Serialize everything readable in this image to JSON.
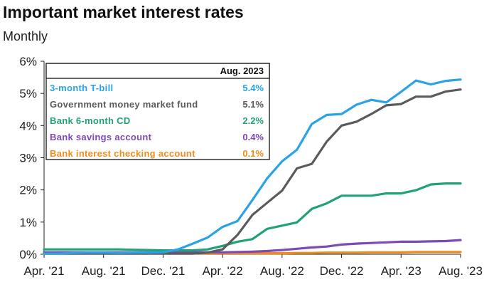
{
  "chart_data": {
    "type": "line",
    "title": "Important market interest rates",
    "subtitle": "Monthly",
    "xlabel": "",
    "ylabel": "",
    "ylim": [
      0,
      6
    ],
    "y_ticks": [
      "0%",
      "1%",
      "2%",
      "3%",
      "4%",
      "5%",
      "6%"
    ],
    "x_tick_labels": [
      "Apr. '21",
      "Aug. '21",
      "Dec. '21",
      "Apr. '22",
      "Aug. '22",
      "Dec. '22",
      "Apr. '23",
      "Aug. '23"
    ],
    "x_tick_index": [
      0,
      4,
      8,
      12,
      16,
      20,
      24,
      28
    ],
    "legend_header": "Aug. 2023",
    "months": [
      "Apr. '21",
      "May '21",
      "Jun. '21",
      "Jul. '21",
      "Aug. '21",
      "Sep. '21",
      "Oct. '21",
      "Nov. '21",
      "Dec. '21",
      "Jan. '22",
      "Feb. '22",
      "Mar. '22",
      "Apr. '22",
      "May '22",
      "Jun. '22",
      "Jul. '22",
      "Aug. '22",
      "Sep. '22",
      "Oct. '22",
      "Nov. '22",
      "Dec. '22",
      "Jan. '23",
      "Feb. '23",
      "Mar. '23",
      "Apr. '23",
      "May '23",
      "Jun. '23",
      "Jul. '23",
      "Aug. '23"
    ],
    "series": [
      {
        "name": "3-month T-bill",
        "label_value": "5.4%",
        "color": "#29a3e6",
        "values": [
          0.02,
          0.02,
          0.04,
          0.05,
          0.05,
          0.04,
          0.05,
          0.05,
          0.06,
          0.15,
          0.33,
          0.52,
          0.85,
          1.03,
          1.68,
          2.36,
          2.89,
          3.25,
          4.05,
          4.33,
          4.36,
          4.65,
          4.8,
          4.72,
          5.05,
          5.4,
          5.28,
          5.39,
          5.43
        ]
      },
      {
        "name": "Government money market fund",
        "label_value": "5.1%",
        "color": "#5b5b5b",
        "values": [
          0.02,
          0.02,
          0.02,
          0.02,
          0.02,
          0.02,
          0.02,
          0.02,
          0.02,
          0.02,
          0.02,
          0.05,
          0.15,
          0.6,
          1.22,
          1.6,
          1.98,
          2.67,
          2.81,
          3.5,
          4.0,
          4.12,
          4.36,
          4.63,
          4.67,
          4.9,
          4.9,
          5.06,
          5.12
        ]
      },
      {
        "name": "Bank 6-month CD",
        "label_value": "2.2%",
        "color": "#21a179",
        "values": [
          0.15,
          0.15,
          0.15,
          0.15,
          0.15,
          0.15,
          0.14,
          0.13,
          0.12,
          0.12,
          0.12,
          0.15,
          0.26,
          0.39,
          0.47,
          0.79,
          0.89,
          0.99,
          1.41,
          1.58,
          1.82,
          1.82,
          1.82,
          1.89,
          1.89,
          1.99,
          2.17,
          2.2,
          2.2
        ]
      },
      {
        "name": "Bank savings account",
        "label_value": "0.4%",
        "color": "#7e49b5",
        "values": [
          0.06,
          0.06,
          0.06,
          0.06,
          0.06,
          0.06,
          0.06,
          0.06,
          0.06,
          0.06,
          0.06,
          0.06,
          0.06,
          0.07,
          0.08,
          0.1,
          0.13,
          0.17,
          0.21,
          0.24,
          0.3,
          0.33,
          0.35,
          0.37,
          0.39,
          0.39,
          0.4,
          0.41,
          0.44
        ]
      },
      {
        "name": "Bank interest checking account",
        "label_value": "0.1%",
        "color": "#f08c1d",
        "values": [
          0.03,
          0.03,
          0.03,
          0.03,
          0.03,
          0.03,
          0.03,
          0.03,
          0.03,
          0.03,
          0.03,
          0.03,
          0.03,
          0.03,
          0.03,
          0.03,
          0.03,
          0.04,
          0.04,
          0.05,
          0.05,
          0.05,
          0.06,
          0.06,
          0.06,
          0.07,
          0.07,
          0.07,
          0.07
        ]
      }
    ]
  }
}
